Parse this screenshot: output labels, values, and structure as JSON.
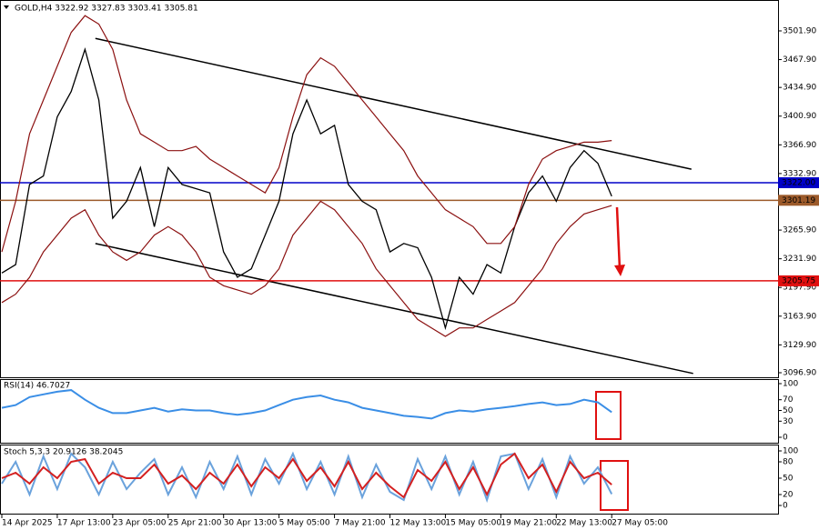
{
  "chart_data": [
    {
      "type": "line",
      "title": "GOLD,H4  3322.92 3327.83 3303.41 3305.81",
      "x": [
        0,
        4,
        8,
        12,
        16,
        20,
        24,
        28,
        32,
        36,
        40,
        44,
        48,
        52,
        56,
        60,
        64,
        68,
        72,
        76,
        80,
        84,
        88,
        92,
        96,
        100,
        104,
        108,
        112,
        116,
        120,
        124,
        128,
        132,
        136,
        140,
        144,
        148,
        152,
        156,
        160,
        164,
        168,
        172,
        176
      ],
      "xlim": [
        0,
        224
      ],
      "xticks": [
        {
          "value": 0,
          "label": "14 Apr 2025"
        },
        {
          "value": 16,
          "label": "17 Apr 13:00"
        },
        {
          "value": 32,
          "label": "23 Apr 05:00"
        },
        {
          "value": 48,
          "label": "25 Apr 21:00"
        },
        {
          "value": 64,
          "label": "30 Apr 13:00"
        },
        {
          "value": 80,
          "label": "5 May 05:00"
        },
        {
          "value": 96,
          "label": "7 May 21:00"
        },
        {
          "value": 112,
          "label": "12 May 13:00"
        },
        {
          "value": 128,
          "label": "15 May 05:00"
        },
        {
          "value": 144,
          "label": "19 May 21:00"
        },
        {
          "value": 160,
          "label": "22 May 13:00"
        },
        {
          "value": 176,
          "label": "27 May 05:00"
        }
      ],
      "ylim": [
        3091.5,
        3538.5
      ],
      "yticks": [
        {
          "value": 3501.9,
          "label": "3501.90"
        },
        {
          "value": 3467.9,
          "label": "3467.90"
        },
        {
          "value": 3434.9,
          "label": "3434.90"
        },
        {
          "value": 3400.9,
          "label": "3400.90"
        },
        {
          "value": 3366.9,
          "label": "3366.90"
        },
        {
          "value": 3332.9,
          "label": "3332.90"
        },
        {
          "value": 3265.9,
          "label": "3265.90"
        },
        {
          "value": 3231.9,
          "label": "3231.90"
        },
        {
          "value": 3197.9,
          "label": "3197.90"
        },
        {
          "value": 3163.9,
          "label": "3163.90"
        },
        {
          "value": 3129.9,
          "label": "3129.90"
        },
        {
          "value": 3096.9,
          "label": "3096.90"
        }
      ],
      "series": [
        {
          "color": "#000000",
          "values": [
            3215,
            3225,
            3320,
            3330,
            3400,
            3430,
            3480,
            3420,
            3280,
            3300,
            3340,
            3270,
            3340,
            3320,
            3315,
            3310,
            3240,
            3210,
            3220,
            3260,
            3300,
            3380,
            3420,
            3380,
            3390,
            3320,
            3300,
            3290,
            3240,
            3250,
            3245,
            3210,
            3150,
            3210,
            3190,
            3225,
            3215,
            3270,
            3310,
            3330,
            3300,
            3340,
            3360,
            3345,
            3306
          ]
        },
        {
          "color": "#8b1010",
          "values": [
            3240,
            3300,
            3380,
            3420,
            3460,
            3500,
            3520,
            3510,
            3480,
            3420,
            3380,
            3370,
            3360,
            3360,
            3365,
            3350,
            3340,
            3330,
            3320,
            3310,
            3340,
            3400,
            3450,
            3470,
            3460,
            3440,
            3420,
            3400,
            3380,
            3360,
            3330,
            3310,
            3290,
            3280,
            3270,
            3250,
            3250,
            3270,
            3320,
            3350,
            3360,
            3365,
            3370,
            3370,
            3372
          ]
        },
        {
          "color": "#8b1010",
          "values": [
            3180,
            3190,
            3210,
            3240,
            3260,
            3280,
            3290,
            3260,
            3240,
            3230,
            3240,
            3260,
            3270,
            3260,
            3240,
            3210,
            3200,
            3195,
            3190,
            3200,
            3220,
            3260,
            3280,
            3300,
            3290,
            3270,
            3250,
            3220,
            3200,
            3180,
            3160,
            3150,
            3140,
            3150,
            3150,
            3160,
            3170,
            3180,
            3200,
            3220,
            3250,
            3270,
            3285,
            3290,
            3295
          ]
        }
      ],
      "trendlines": [
        {
          "x": [
            27,
            199
          ],
          "values": [
            3493,
            3338
          ]
        },
        {
          "x": [
            27,
            199.5
          ],
          "values": [
            3250,
            3096
          ]
        }
      ],
      "levels": [
        {
          "value": 3322.0,
          "label": "3322.00",
          "color": "#0000c8"
        },
        {
          "value": 3301.19,
          "label": "3301.19",
          "color": "#9c5a2a"
        },
        {
          "value": 3205.75,
          "label": "3205.75",
          "color": "#e01010"
        }
      ]
    },
    {
      "type": "line",
      "title": "RSI(14) 46.7027",
      "ylim": [
        0,
        100
      ],
      "yticks": [
        100,
        70,
        50,
        30,
        0
      ],
      "series": [
        {
          "color": "#3a8ee6",
          "values": [
            55,
            60,
            75,
            80,
            85,
            88,
            70,
            55,
            45,
            45,
            50,
            55,
            48,
            52,
            50,
            50,
            45,
            42,
            45,
            50,
            60,
            70,
            75,
            78,
            70,
            65,
            55,
            50,
            45,
            40,
            38,
            35,
            45,
            50,
            48,
            52,
            55,
            58,
            62,
            65,
            60,
            62,
            70,
            65,
            46.7027
          ]
        }
      ]
    },
    {
      "type": "line",
      "title": "Stoch 5,3,3 20.9126 38.2045",
      "ylim": [
        0,
        100
      ],
      "yticks": [
        100,
        80,
        50,
        20,
        0
      ],
      "series": [
        {
          "color": "#6aa2dc",
          "values": [
            40,
            80,
            20,
            90,
            30,
            95,
            70,
            20,
            80,
            30,
            60,
            85,
            20,
            70,
            15,
            80,
            30,
            90,
            20,
            85,
            40,
            95,
            30,
            80,
            20,
            90,
            15,
            75,
            25,
            10,
            85,
            30,
            90,
            20,
            80,
            10,
            90,
            95,
            30,
            85,
            15,
            90,
            40,
            70,
            20.9126
          ]
        },
        {
          "color": "#d42020",
          "values": [
            50,
            60,
            40,
            70,
            50,
            80,
            85,
            40,
            60,
            50,
            50,
            75,
            40,
            55,
            30,
            60,
            40,
            75,
            35,
            70,
            50,
            85,
            45,
            70,
            35,
            80,
            30,
            60,
            35,
            15,
            65,
            45,
            80,
            30,
            70,
            20,
            75,
            95,
            50,
            75,
            25,
            80,
            50,
            60,
            38.2045
          ]
        }
      ]
    }
  ]
}
